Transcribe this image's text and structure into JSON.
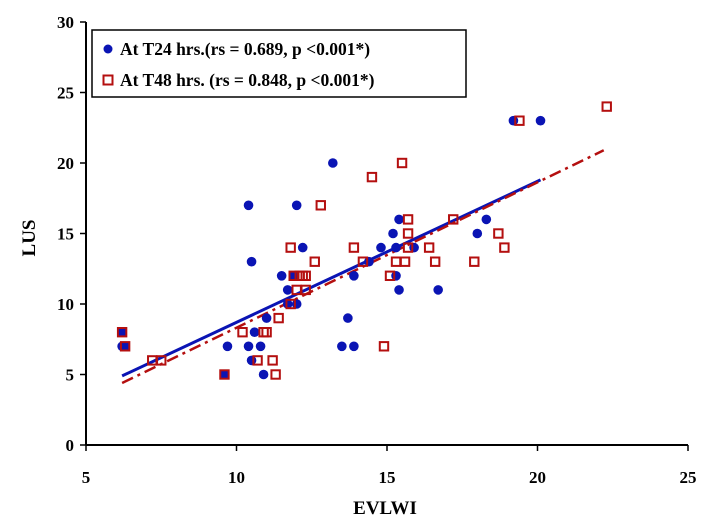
{
  "chart_data": {
    "type": "scatter",
    "xlabel": "EVLWI",
    "ylabel": "LUS",
    "xlim": [
      5,
      25
    ],
    "ylim": [
      0,
      30
    ],
    "xticks": [
      5,
      10,
      15,
      20,
      25
    ],
    "yticks": [
      0,
      5,
      10,
      15,
      20,
      25,
      30
    ],
    "grid": false,
    "legend_position": "top-left",
    "series": [
      {
        "name": "At T24 hrs.(rs = 0.689, p <0.001*)",
        "marker": "filled-circle",
        "color": "#0a14b4",
        "trendline": {
          "style": "solid",
          "x": [
            6.2,
            20.1
          ],
          "y": [
            4.9,
            18.8
          ]
        },
        "points": [
          [
            6.2,
            8
          ],
          [
            6.2,
            7
          ],
          [
            6.3,
            7
          ],
          [
            9.6,
            5
          ],
          [
            9.7,
            7
          ],
          [
            10.4,
            17
          ],
          [
            10.4,
            7
          ],
          [
            10.5,
            13
          ],
          [
            10.5,
            6
          ],
          [
            10.6,
            8
          ],
          [
            10.8,
            7
          ],
          [
            10.9,
            5
          ],
          [
            11,
            9
          ],
          [
            11.5,
            12
          ],
          [
            11.7,
            10
          ],
          [
            11.7,
            11
          ],
          [
            11.9,
            12
          ],
          [
            12,
            17
          ],
          [
            12,
            10
          ],
          [
            12.2,
            14
          ],
          [
            13.2,
            20
          ],
          [
            13.5,
            7
          ],
          [
            13.7,
            9
          ],
          [
            13.9,
            12
          ],
          [
            13.9,
            7
          ],
          [
            14.4,
            13
          ],
          [
            14.8,
            14
          ],
          [
            15.2,
            15
          ],
          [
            15.3,
            14
          ],
          [
            15.3,
            12
          ],
          [
            15.4,
            16
          ],
          [
            15.4,
            11
          ],
          [
            15.9,
            14
          ],
          [
            16.7,
            11
          ],
          [
            18,
            15
          ],
          [
            18.3,
            16
          ],
          [
            19.2,
            23
          ],
          [
            20.1,
            23
          ]
        ]
      },
      {
        "name": "At T48 hrs. (rs = 0.848, p <0.001*)",
        "marker": "open-square",
        "color": "#b40f0f",
        "trendline": {
          "style": "dash-dot",
          "x": [
            6.2,
            22.2
          ],
          "y": [
            4.4,
            20.9
          ]
        },
        "points": [
          [
            6.2,
            8
          ],
          [
            6.3,
            7
          ],
          [
            7.2,
            6
          ],
          [
            7.5,
            6
          ],
          [
            9.6,
            5
          ],
          [
            10.2,
            8
          ],
          [
            10.7,
            6
          ],
          [
            10.9,
            8
          ],
          [
            11,
            8
          ],
          [
            11.2,
            6
          ],
          [
            11.3,
            5
          ],
          [
            11.4,
            9
          ],
          [
            11.8,
            14
          ],
          [
            11.8,
            10
          ],
          [
            11.9,
            12
          ],
          [
            12,
            11
          ],
          [
            12.1,
            12
          ],
          [
            12.2,
            12
          ],
          [
            12.3,
            11
          ],
          [
            12.3,
            12
          ],
          [
            12.6,
            13
          ],
          [
            12.8,
            17
          ],
          [
            13.9,
            14
          ],
          [
            14.2,
            13
          ],
          [
            14.5,
            19
          ],
          [
            14.9,
            7
          ],
          [
            15.1,
            12
          ],
          [
            15.3,
            13
          ],
          [
            15.5,
            20
          ],
          [
            15.6,
            13
          ],
          [
            15.7,
            16
          ],
          [
            15.7,
            15
          ],
          [
            15.7,
            14
          ],
          [
            16.4,
            14
          ],
          [
            16.6,
            13
          ],
          [
            17.2,
            16
          ],
          [
            17.9,
            13
          ],
          [
            18.7,
            15
          ],
          [
            18.9,
            14
          ],
          [
            19.4,
            23
          ],
          [
            22.3,
            24
          ]
        ]
      }
    ]
  }
}
